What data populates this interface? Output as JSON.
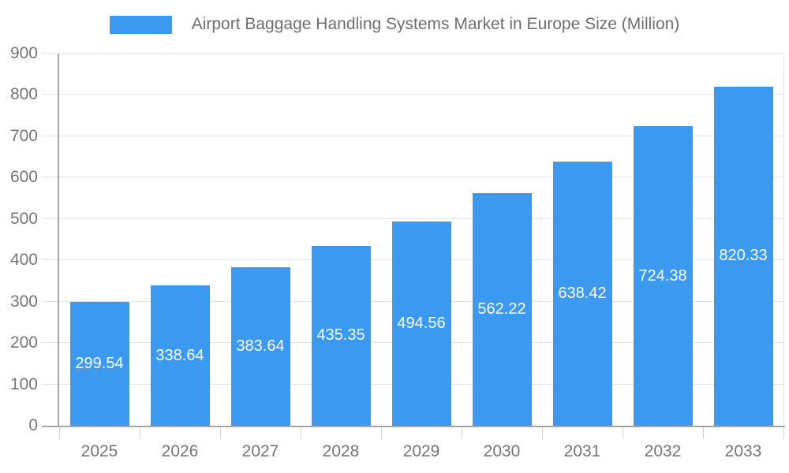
{
  "legend": {
    "label": "Airport Baggage Handling Systems Market in Europe Size (Million)"
  },
  "colors": {
    "bar": "#3b99f0",
    "grid": "#e3e3e3",
    "axis": "#a6a6a6",
    "tick": "#d4d4d4",
    "axis_label": "#757575",
    "title": "#6e6e6e",
    "value_label": "#ffffff",
    "background": "#ffffff"
  },
  "chart_data": {
    "type": "bar",
    "title": "Airport Baggage Handling Systems Market in Europe Size (Million)",
    "categories": [
      "2025",
      "2026",
      "2027",
      "2028",
      "2029",
      "2030",
      "2031",
      "2032",
      "2033"
    ],
    "values": [
      299.54,
      338.64,
      383.64,
      435.35,
      494.56,
      562.22,
      638.42,
      724.38,
      820.33
    ],
    "value_labels": [
      "299.54",
      "338.64",
      "383.64",
      "435.35",
      "494.56",
      "562.22",
      "638.42",
      "724.38",
      "820.33"
    ],
    "xlabel": "",
    "ylabel": "",
    "ylim": [
      0,
      900
    ],
    "ytick_step": 100,
    "ytick_labels": [
      "0",
      "100",
      "200",
      "300",
      "400",
      "500",
      "600",
      "700",
      "800",
      "900"
    ],
    "grid": true,
    "legend_position": "top",
    "value_label_position": "center-inside",
    "bar_color": "#3b99f0"
  }
}
